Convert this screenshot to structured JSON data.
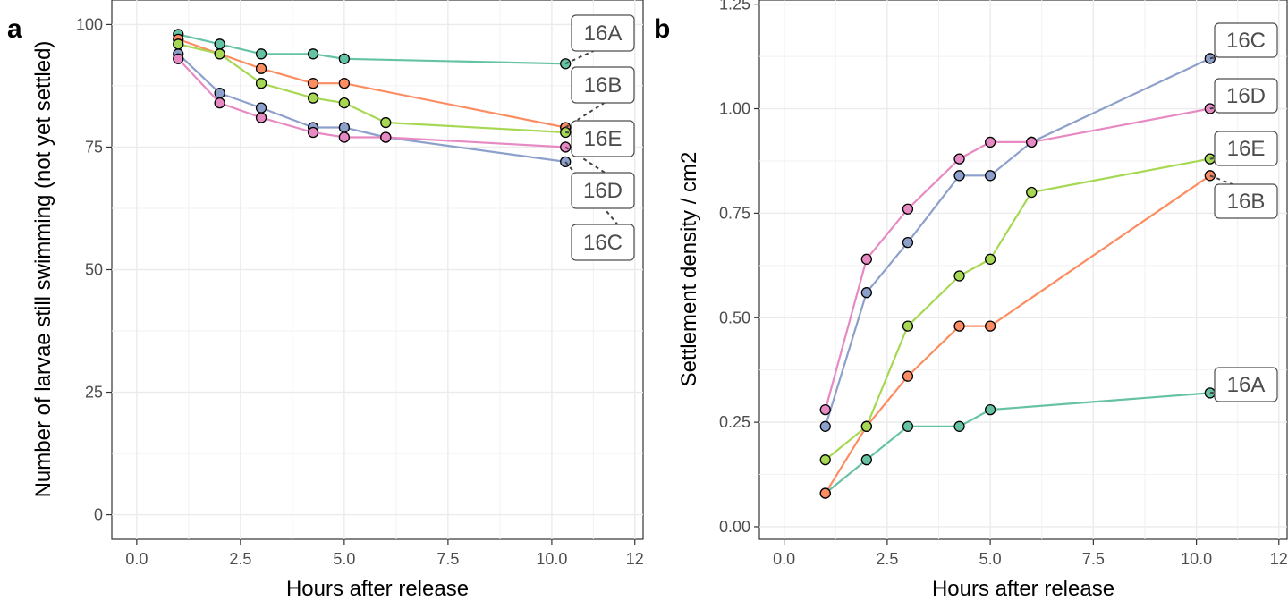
{
  "chart_data": [
    {
      "panel": "a",
      "type": "line",
      "xlabel": "Hours after release",
      "ylabel": "Number of larvae still swimming (not yet settled)",
      "xlim": [
        -0.6,
        12.2
      ],
      "ylim": [
        -5,
        105
      ],
      "xticks": [
        0,
        2.5,
        5,
        7.5,
        10,
        12
      ],
      "xtick_labels": [
        "0.0",
        "2.5",
        "5.0",
        "7.5",
        "10.0",
        "12"
      ],
      "yticks": [
        0,
        25,
        50,
        75,
        100
      ],
      "ytick_labels": [
        "0",
        "25",
        "50",
        "75",
        "100"
      ],
      "grid": true,
      "series": [
        {
          "name": "16A",
          "color": "#66c2a5",
          "x": [
            1,
            2,
            3,
            4.25,
            5,
            10.33
          ],
          "y": [
            98,
            96,
            94,
            94,
            93,
            92
          ]
        },
        {
          "name": "16B",
          "color": "#fc8d62",
          "x": [
            1,
            2,
            3,
            4.25,
            5,
            10.33
          ],
          "y": [
            97,
            94,
            91,
            88,
            88,
            79
          ]
        },
        {
          "name": "16C",
          "color": "#8da0cb",
          "x": [
            1,
            2,
            3,
            4.25,
            5,
            6,
            10.33
          ],
          "y": [
            94,
            86,
            83,
            79,
            79,
            77,
            72
          ]
        },
        {
          "name": "16D",
          "color": "#e78ac3",
          "x": [
            1,
            2,
            3,
            4.25,
            5,
            6,
            10.33
          ],
          "y": [
            93,
            84,
            81,
            78,
            77,
            77,
            75
          ]
        },
        {
          "name": "16E",
          "color": "#a6d854",
          "x": [
            1,
            2,
            3,
            4.25,
            5,
            6,
            10.33
          ],
          "y": [
            96,
            94,
            88,
            85,
            84,
            80,
            78
          ]
        }
      ]
    },
    {
      "panel": "b",
      "type": "line",
      "xlabel": "Hours after release",
      "ylabel": "Settlement density / cm2",
      "xlim": [
        -0.6,
        12.2
      ],
      "ylim": [
        -0.03,
        1.26
      ],
      "xticks": [
        0,
        2.5,
        5,
        7.5,
        10,
        12
      ],
      "xtick_labels": [
        "0.0",
        "2.5",
        "5.0",
        "7.5",
        "10.0",
        "12"
      ],
      "yticks": [
        0,
        0.25,
        0.5,
        0.75,
        1.0,
        1.25
      ],
      "ytick_labels": [
        "0.00",
        "0.25",
        "0.50",
        "0.75",
        "1.00",
        "1.25"
      ],
      "grid": true,
      "series": [
        {
          "name": "16A",
          "color": "#66c2a5",
          "x": [
            1,
            2,
            3,
            4.25,
            5,
            10.33
          ],
          "y": [
            0.08,
            0.16,
            0.24,
            0.24,
            0.28,
            0.32
          ]
        },
        {
          "name": "16B",
          "color": "#fc8d62",
          "x": [
            1,
            2,
            3,
            4.25,
            5,
            10.33
          ],
          "y": [
            0.08,
            0.24,
            0.36,
            0.48,
            0.48,
            0.84
          ]
        },
        {
          "name": "16C",
          "color": "#8da0cb",
          "x": [
            1,
            2,
            3,
            4.25,
            5,
            6,
            10.33
          ],
          "y": [
            0.24,
            0.56,
            0.68,
            0.84,
            0.84,
            0.92,
            1.12
          ]
        },
        {
          "name": "16D",
          "color": "#e78ac3",
          "x": [
            1,
            2,
            3,
            4.25,
            5,
            6,
            10.33
          ],
          "y": [
            0.28,
            0.64,
            0.76,
            0.88,
            0.92,
            0.92,
            1.0
          ]
        },
        {
          "name": "16E",
          "color": "#a6d854",
          "x": [
            1,
            2,
            3,
            4.25,
            5,
            6,
            10.33
          ],
          "y": [
            0.16,
            0.24,
            0.48,
            0.6,
            0.64,
            0.8,
            0.88
          ]
        }
      ]
    }
  ],
  "labels_a": {
    "tag": "a",
    "xlabel": "Hours after release",
    "ylabel": "Number of larvae still swimming (not yet settled)"
  },
  "labels_b": {
    "tag": "b",
    "xlabel": "Hours after release",
    "ylabel": "Settlement density / cm2"
  }
}
